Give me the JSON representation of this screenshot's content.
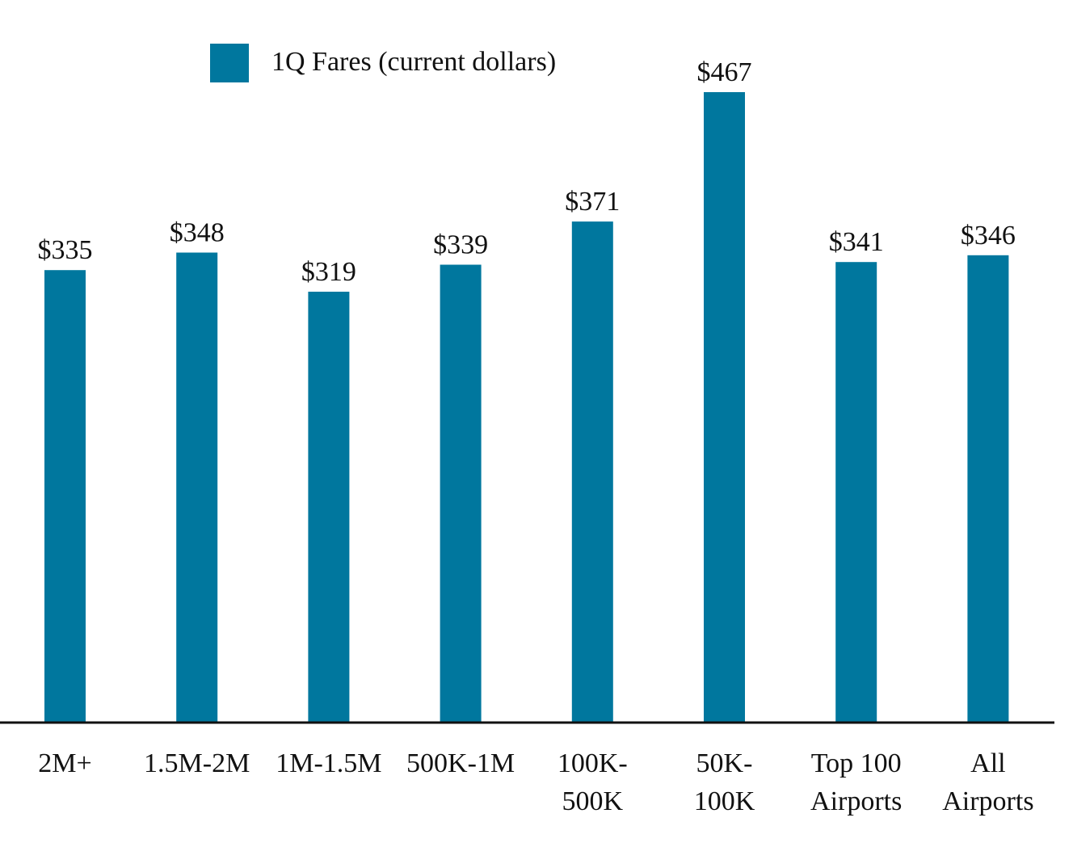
{
  "chart_data": {
    "type": "bar",
    "title": "",
    "xlabel": "",
    "ylabel": "",
    "ylim": [
      0,
      467
    ],
    "grid": false,
    "legend_position": "top-left",
    "bar_color": "#00779E",
    "categories": [
      [
        "2M+"
      ],
      [
        "1.5M-2M"
      ],
      [
        "1M-1.5M"
      ],
      [
        "500K-1M"
      ],
      [
        "100K-",
        "500K"
      ],
      [
        "50K-",
        "100K"
      ],
      [
        "Top 100",
        "Airports"
      ],
      [
        "All",
        "Airports"
      ]
    ],
    "series": [
      {
        "name": "1Q Fares (current dollars)",
        "values": [
          335,
          348,
          319,
          339,
          371,
          467,
          341,
          346
        ],
        "labels": [
          "$335",
          "$348",
          "$319",
          "$339",
          "$371",
          "$467",
          "$341",
          "$346"
        ]
      }
    ]
  }
}
